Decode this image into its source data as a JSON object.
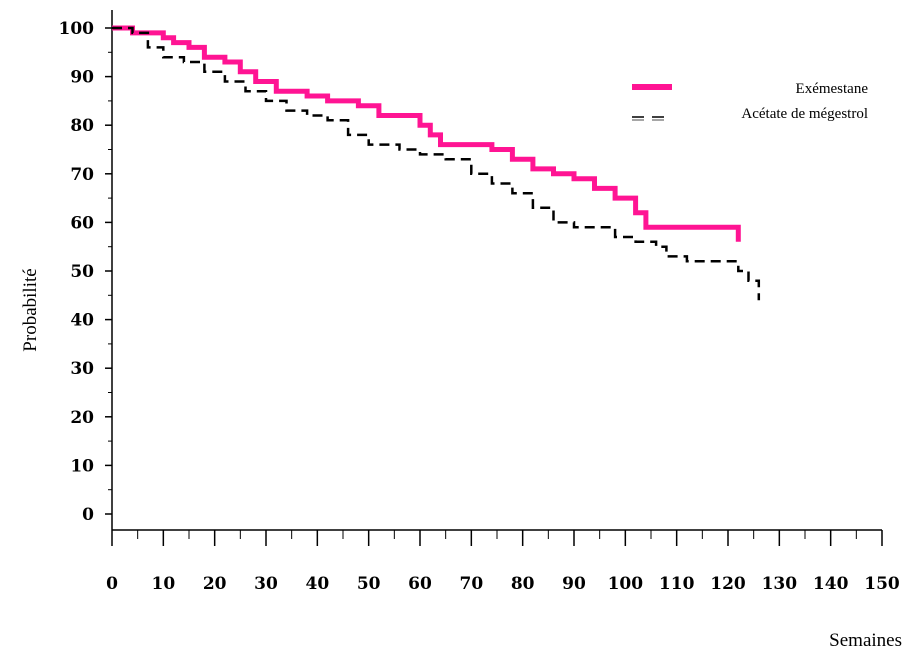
{
  "chart_data": {
    "type": "line",
    "title": "",
    "xlabel": "Semaines",
    "ylabel": "Probabilité",
    "xlim": [
      0,
      150
    ],
    "ylim": [
      0,
      100
    ],
    "x_ticks": [
      "0",
      "10",
      "20",
      "30",
      "40",
      "50",
      "60",
      "70",
      "80",
      "90",
      "100",
      "110",
      "120",
      "130",
      "140",
      "150"
    ],
    "y_ticks": [
      "0",
      "10",
      "20",
      "30",
      "40",
      "50",
      "60",
      "70",
      "80",
      "90",
      "100"
    ],
    "grid": false,
    "legend_position": "top-right",
    "series": [
      {
        "name": "Exémestane",
        "color": "#ff1493",
        "style": "solid",
        "points": [
          [
            0,
            100
          ],
          [
            3,
            100
          ],
          [
            4,
            99
          ],
          [
            10,
            98
          ],
          [
            12,
            97
          ],
          [
            15,
            96
          ],
          [
            18,
            94
          ],
          [
            22,
            93
          ],
          [
            25,
            91
          ],
          [
            28,
            89
          ],
          [
            32,
            87
          ],
          [
            38,
            86
          ],
          [
            42,
            85
          ],
          [
            48,
            84
          ],
          [
            52,
            82
          ],
          [
            57,
            82
          ],
          [
            60,
            80
          ],
          [
            62,
            78
          ],
          [
            64,
            76
          ],
          [
            70,
            76
          ],
          [
            74,
            75
          ],
          [
            78,
            73
          ],
          [
            82,
            71
          ],
          [
            86,
            70
          ],
          [
            90,
            69
          ],
          [
            94,
            67
          ],
          [
            98,
            65
          ],
          [
            102,
            62
          ],
          [
            104,
            59
          ],
          [
            110,
            59
          ],
          [
            118,
            59
          ],
          [
            122,
            59
          ],
          [
            122,
            56
          ]
        ]
      },
      {
        "name": "Acétate de mégestrol",
        "color": "#000000",
        "style": "dashed",
        "points": [
          [
            0,
            100
          ],
          [
            4,
            99
          ],
          [
            7,
            96
          ],
          [
            10,
            94
          ],
          [
            14,
            93
          ],
          [
            18,
            91
          ],
          [
            22,
            89
          ],
          [
            26,
            87
          ],
          [
            30,
            85
          ],
          [
            34,
            83
          ],
          [
            38,
            82
          ],
          [
            42,
            81
          ],
          [
            46,
            78
          ],
          [
            50,
            76
          ],
          [
            56,
            75
          ],
          [
            60,
            74
          ],
          [
            65,
            73
          ],
          [
            70,
            70
          ],
          [
            74,
            68
          ],
          [
            78,
            66
          ],
          [
            82,
            63
          ],
          [
            86,
            60
          ],
          [
            90,
            59
          ],
          [
            94,
            59
          ],
          [
            98,
            57
          ],
          [
            102,
            56
          ],
          [
            106,
            55
          ],
          [
            108,
            53
          ],
          [
            112,
            52
          ],
          [
            118,
            52
          ],
          [
            120,
            52
          ],
          [
            122,
            50
          ],
          [
            124,
            48
          ],
          [
            126,
            47
          ],
          [
            126,
            44
          ]
        ]
      }
    ]
  }
}
